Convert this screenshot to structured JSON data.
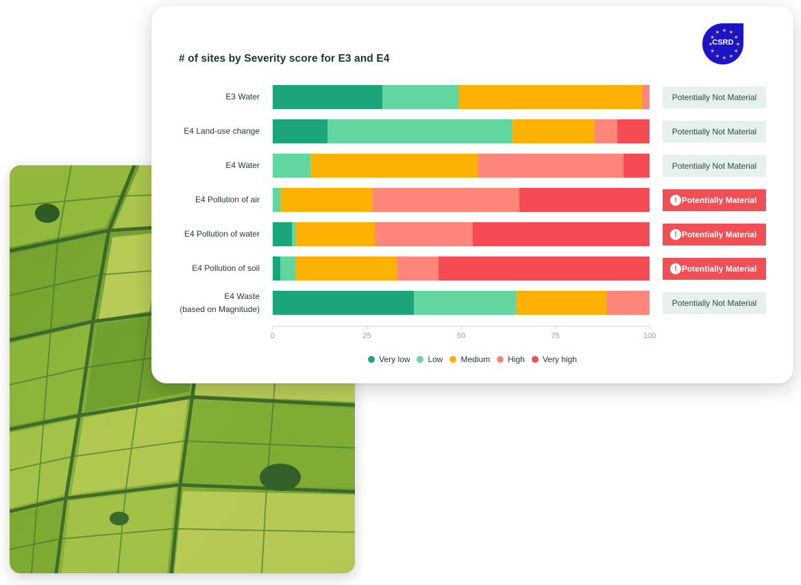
{
  "chart_data": {
    "type": "bar",
    "orientation": "horizontal",
    "stacked": true,
    "title": "# of sites by Severity score for E3 and E4",
    "categories": [
      [
        "E3 Water"
      ],
      [
        "E4 Land-use change"
      ],
      [
        "E4 Water"
      ],
      [
        "E4 Pollution of air"
      ],
      [
        "E4 Pollution of water"
      ],
      [
        "E4 Pollution of soil"
      ],
      [
        "E4 Waste",
        "(based on Magnitude)"
      ]
    ],
    "series": [
      {
        "name": "Very low",
        "color": "#1ca57a",
        "values": [
          29,
          14.5,
          0,
          0,
          5,
          2,
          37.5
        ]
      },
      {
        "name": "Low",
        "color": "#62d6a0",
        "values": [
          20.5,
          49,
          10,
          2,
          1,
          4,
          27
        ]
      },
      {
        "name": "Medium",
        "color": "#fdb104",
        "values": [
          48.5,
          22,
          44.5,
          24.5,
          21,
          27,
          24
        ]
      },
      {
        "name": "High",
        "color": "#fd857a",
        "values": [
          2,
          6,
          38.5,
          39,
          26,
          11,
          11.5
        ]
      },
      {
        "name": "Very high",
        "color": "#f64b54",
        "values": [
          0,
          8.5,
          7,
          34.5,
          47,
          56,
          0
        ]
      }
    ],
    "xlim": [
      0,
      100
    ],
    "xticks": [
      "0",
      "25",
      "50",
      "75",
      "100"
    ],
    "xlabel": "",
    "ylabel": "",
    "legend_position": "bottom-center",
    "status_labels": [
      {
        "text": "Potentially Not Material",
        "material": false
      },
      {
        "text": "Potentially Not Material",
        "material": false
      },
      {
        "text": "Potentially Not Material",
        "material": false
      },
      {
        "text": "Potentially Material",
        "material": true
      },
      {
        "text": "Potentially Material",
        "material": true
      },
      {
        "text": "Potentially Material",
        "material": true
      },
      {
        "text": "Potentially Not Material",
        "material": false
      }
    ]
  },
  "badge": {
    "text": "CSRD",
    "color": "#1d14c9",
    "star_color": "#ffd400"
  },
  "colors": {
    "material_bg": "#f04f55",
    "not_material_bg": "#e6f0ee"
  },
  "icons": {
    "alert": "!"
  }
}
